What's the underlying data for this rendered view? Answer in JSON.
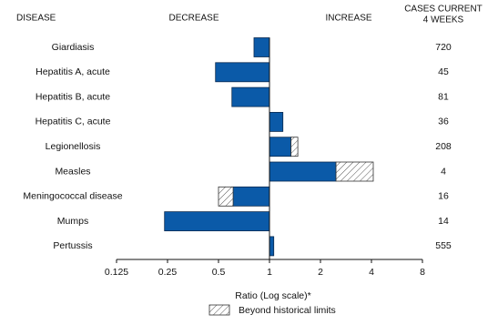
{
  "chart_data": {
    "type": "bar",
    "orientation": "horizontal",
    "headers": {
      "disease": "DISEASE",
      "decrease": "DECREASE",
      "increase": "INCREASE",
      "cases": [
        "CASES CURRENT",
        "4 WEEKS"
      ]
    },
    "categories": [
      "Giardiasis",
      "Hepatitis A, acute",
      "Hepatitis B, acute",
      "Hepatitis C, acute",
      "Legionellosis",
      "Measles",
      "Meningococcal disease",
      "Mumps",
      "Pertussis"
    ],
    "values": [
      0.81,
      0.48,
      0.6,
      1.2,
      1.47,
      4.1,
      0.5,
      0.24,
      1.06
    ],
    "historical_limits": [
      null,
      null,
      null,
      null,
      1.34,
      2.47,
      0.61,
      null,
      null
    ],
    "cases": [
      720,
      45,
      81,
      36,
      208,
      4,
      16,
      14,
      555
    ],
    "color": "#0b5aa8",
    "beyond_color": "#555555",
    "legend_label": "Beyond historical limits",
    "xlabel": "Ratio (Log scale)*",
    "log_scale": true,
    "base": 1,
    "xlim": [
      0.125,
      8
    ],
    "xticks": [
      0.125,
      0.25,
      0.5,
      1,
      2,
      4,
      8
    ]
  }
}
